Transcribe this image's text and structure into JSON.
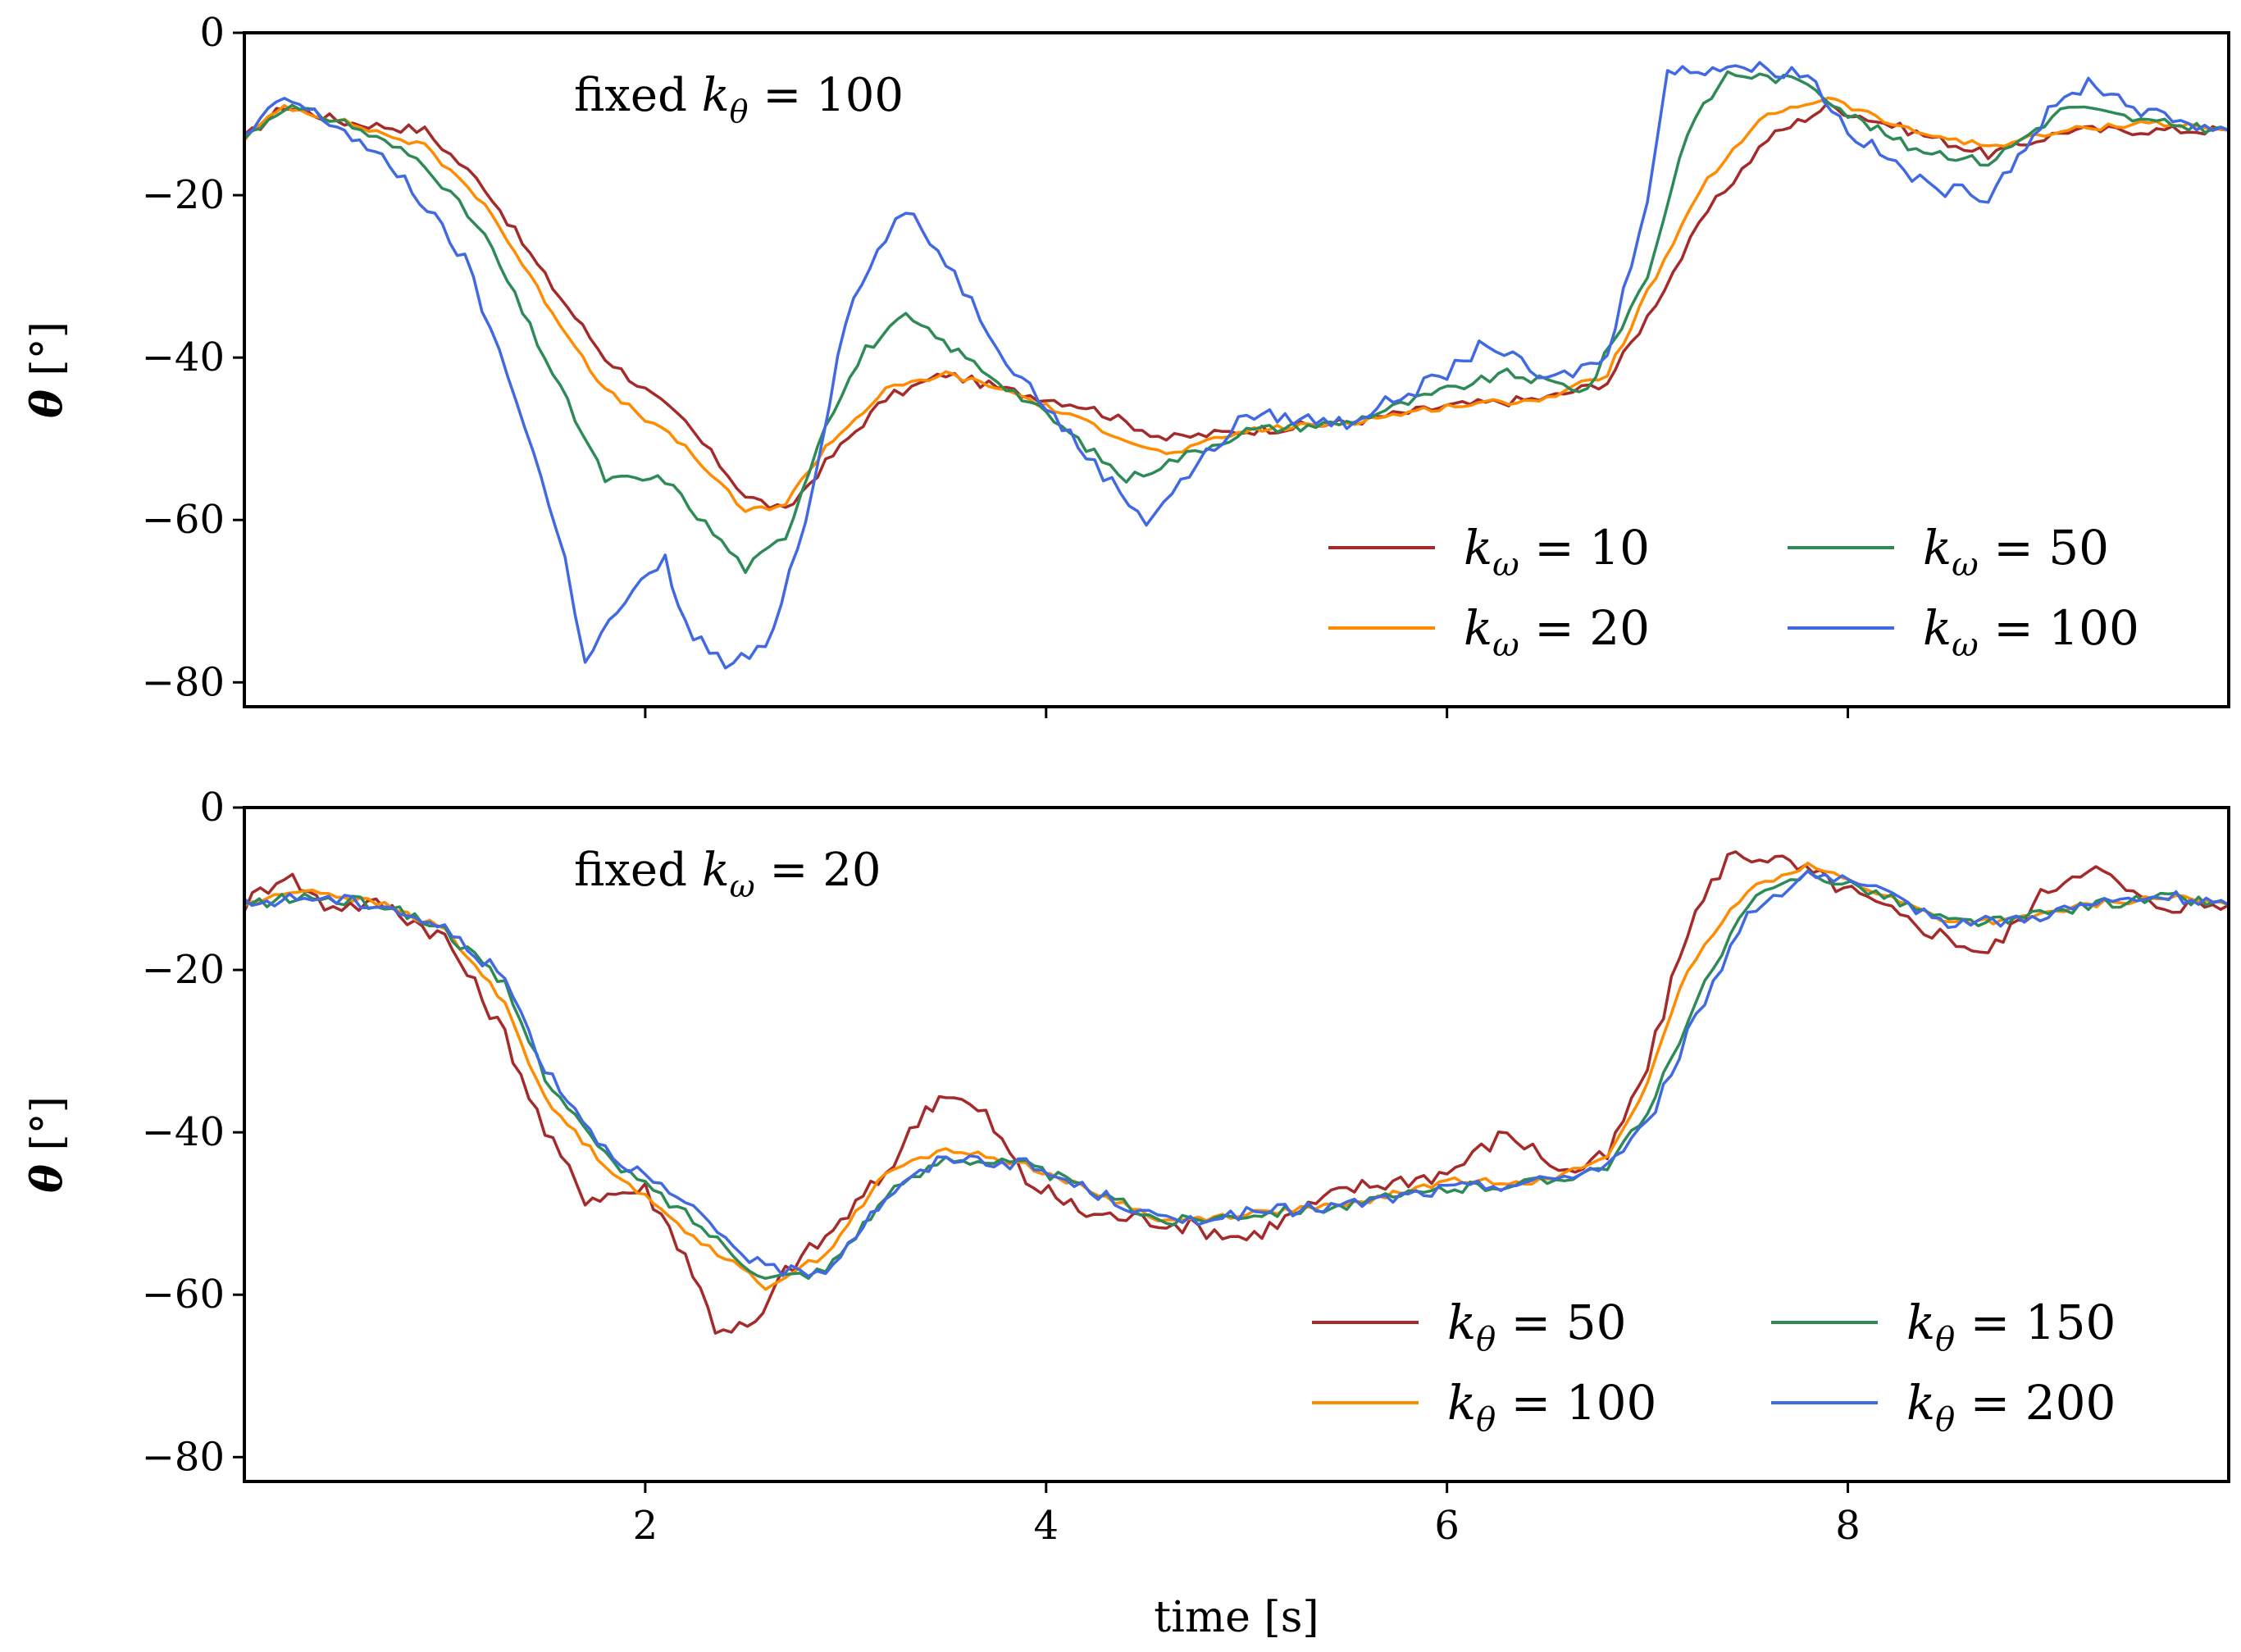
{
  "chart_data": [
    {
      "type": "line",
      "annotation": "fixed k_θ = 100",
      "ylabel": "θ [°]",
      "xlabel": "",
      "xlim": [
        0,
        9.9
      ],
      "ylim": [
        -83,
        0
      ],
      "xticks": [
        2,
        4,
        6,
        8
      ],
      "yticks": [
        0,
        -20,
        -40,
        -60,
        -80
      ],
      "legend": "lower-right, 2 columns",
      "series": [
        {
          "name": "k_ω = 10",
          "color": "#a52a2a",
          "points": [
            [
              0,
              -13
            ],
            [
              0.2,
              -9
            ],
            [
              0.5,
              -11
            ],
            [
              0.9,
              -12
            ],
            [
              1.2,
              -19
            ],
            [
              1.5,
              -30
            ],
            [
              1.8,
              -40
            ],
            [
              2.2,
              -48
            ],
            [
              2.5,
              -57
            ],
            [
              2.7,
              -59
            ],
            [
              2.9,
              -53
            ],
            [
              3.2,
              -45
            ],
            [
              3.5,
              -42
            ],
            [
              3.8,
              -44
            ],
            [
              4.2,
              -46
            ],
            [
              4.6,
              -50
            ],
            [
              5.0,
              -49
            ],
            [
              5.5,
              -48
            ],
            [
              6.0,
              -46
            ],
            [
              6.5,
              -45
            ],
            [
              6.8,
              -43
            ],
            [
              7.0,
              -35
            ],
            [
              7.3,
              -22
            ],
            [
              7.6,
              -13
            ],
            [
              7.9,
              -9
            ],
            [
              8.3,
              -12
            ],
            [
              8.7,
              -15
            ],
            [
              9.1,
              -12
            ],
            [
              9.5,
              -12
            ],
            [
              9.9,
              -12
            ]
          ]
        },
        {
          "name": "k_ω = 20",
          "color": "#ff8c00",
          "points": [
            [
              0,
              -13
            ],
            [
              0.2,
              -9
            ],
            [
              0.5,
              -11
            ],
            [
              0.9,
              -14
            ],
            [
              1.2,
              -21
            ],
            [
              1.5,
              -33
            ],
            [
              1.8,
              -44
            ],
            [
              2.2,
              -51
            ],
            [
              2.5,
              -59
            ],
            [
              2.7,
              -58
            ],
            [
              2.9,
              -51
            ],
            [
              3.2,
              -44
            ],
            [
              3.5,
              -42
            ],
            [
              3.8,
              -44
            ],
            [
              4.2,
              -48
            ],
            [
              4.6,
              -52
            ],
            [
              5.0,
              -49
            ],
            [
              5.5,
              -48
            ],
            [
              6.0,
              -46
            ],
            [
              6.5,
              -45
            ],
            [
              6.8,
              -42
            ],
            [
              7.0,
              -32
            ],
            [
              7.3,
              -18
            ],
            [
              7.6,
              -10
            ],
            [
              7.9,
              -8
            ],
            [
              8.3,
              -12
            ],
            [
              8.7,
              -14
            ],
            [
              9.1,
              -12
            ],
            [
              9.5,
              -11
            ],
            [
              9.9,
              -12
            ]
          ]
        },
        {
          "name": "k_ω = 50",
          "color": "#2e8b57",
          "points": [
            [
              0,
              -13
            ],
            [
              0.2,
              -9
            ],
            [
              0.5,
              -11
            ],
            [
              0.9,
              -16
            ],
            [
              1.2,
              -25
            ],
            [
              1.5,
              -40
            ],
            [
              1.8,
              -55
            ],
            [
              2.1,
              -55
            ],
            [
              2.5,
              -66
            ],
            [
              2.7,
              -62
            ],
            [
              2.9,
              -48
            ],
            [
              3.1,
              -39
            ],
            [
              3.3,
              -35
            ],
            [
              3.6,
              -40
            ],
            [
              4.0,
              -47
            ],
            [
              4.4,
              -55
            ],
            [
              4.7,
              -52
            ],
            [
              5.0,
              -49
            ],
            [
              5.5,
              -48
            ],
            [
              6.0,
              -44
            ],
            [
              6.3,
              -42
            ],
            [
              6.7,
              -44
            ],
            [
              7.0,
              -30
            ],
            [
              7.2,
              -12
            ],
            [
              7.4,
              -5
            ],
            [
              7.8,
              -6
            ],
            [
              8.0,
              -10
            ],
            [
              8.3,
              -14
            ],
            [
              8.7,
              -16
            ],
            [
              9.1,
              -9
            ],
            [
              9.5,
              -11
            ],
            [
              9.9,
              -12
            ]
          ]
        },
        {
          "name": "k_ω = 100",
          "color": "#4169e1",
          "points": [
            [
              0,
              -13
            ],
            [
              0.2,
              -8
            ],
            [
              0.5,
              -12
            ],
            [
              0.8,
              -18
            ],
            [
              1.1,
              -28
            ],
            [
              1.4,
              -48
            ],
            [
              1.6,
              -65
            ],
            [
              1.7,
              -77
            ],
            [
              1.9,
              -70
            ],
            [
              2.1,
              -65
            ],
            [
              2.2,
              -73
            ],
            [
              2.4,
              -78
            ],
            [
              2.6,
              -76
            ],
            [
              2.8,
              -60
            ],
            [
              3.0,
              -35
            ],
            [
              3.2,
              -25
            ],
            [
              3.3,
              -22
            ],
            [
              3.5,
              -28
            ],
            [
              3.8,
              -40
            ],
            [
              4.2,
              -52
            ],
            [
              4.5,
              -60
            ],
            [
              4.8,
              -52
            ],
            [
              5.0,
              -47
            ],
            [
              5.5,
              -48
            ],
            [
              6.0,
              -42
            ],
            [
              6.2,
              -38
            ],
            [
              6.5,
              -43
            ],
            [
              6.8,
              -40
            ],
            [
              7.0,
              -20
            ],
            [
              7.1,
              -5
            ],
            [
              7.4,
              -4
            ],
            [
              7.8,
              -5
            ],
            [
              8.0,
              -12
            ],
            [
              8.4,
              -19
            ],
            [
              8.7,
              -20
            ],
            [
              9.0,
              -10
            ],
            [
              9.2,
              -6
            ],
            [
              9.5,
              -10
            ],
            [
              9.9,
              -12
            ]
          ]
        }
      ]
    },
    {
      "type": "line",
      "annotation": "fixed k_ω = 20",
      "ylabel": "θ [°]",
      "xlabel": "time [s]",
      "xlim": [
        0,
        9.9
      ],
      "ylim": [
        -83,
        0
      ],
      "xticks": [
        2,
        4,
        6,
        8
      ],
      "yticks": [
        0,
        -20,
        -40,
        -60,
        -80
      ],
      "legend": "lower-right, 2 columns",
      "series": [
        {
          "name": "k_θ = 50",
          "color": "#a52a2a",
          "points": [
            [
              0,
              -12
            ],
            [
              0.2,
              -8
            ],
            [
              0.4,
              -12
            ],
            [
              0.7,
              -12
            ],
            [
              1.0,
              -16
            ],
            [
              1.3,
              -28
            ],
            [
              1.5,
              -40
            ],
            [
              1.7,
              -48
            ],
            [
              2.0,
              -47
            ],
            [
              2.2,
              -55
            ],
            [
              2.35,
              -64
            ],
            [
              2.55,
              -64
            ],
            [
              2.7,
              -57
            ],
            [
              2.9,
              -53
            ],
            [
              3.2,
              -45
            ],
            [
              3.4,
              -37
            ],
            [
              3.5,
              -35
            ],
            [
              3.7,
              -38
            ],
            [
              3.9,
              -46
            ],
            [
              4.2,
              -50
            ],
            [
              4.6,
              -51
            ],
            [
              5.0,
              -53
            ],
            [
              5.5,
              -47
            ],
            [
              6.0,
              -45
            ],
            [
              6.3,
              -40
            ],
            [
              6.6,
              -45
            ],
            [
              6.8,
              -43
            ],
            [
              7.0,
              -32
            ],
            [
              7.2,
              -15
            ],
            [
              7.4,
              -6
            ],
            [
              7.6,
              -6
            ],
            [
              7.9,
              -9
            ],
            [
              8.3,
              -14
            ],
            [
              8.7,
              -18
            ],
            [
              9.0,
              -10
            ],
            [
              9.2,
              -7
            ],
            [
              9.5,
              -12
            ],
            [
              9.9,
              -12
            ]
          ]
        },
        {
          "name": "k_θ = 100",
          "color": "#ff8c00",
          "points": [
            [
              0,
              -12
            ],
            [
              0.3,
              -10
            ],
            [
              0.7,
              -12
            ],
            [
              1.0,
              -15
            ],
            [
              1.3,
              -24
            ],
            [
              1.5,
              -36
            ],
            [
              1.8,
              -44
            ],
            [
              2.2,
              -52
            ],
            [
              2.6,
              -59
            ],
            [
              2.9,
              -55
            ],
            [
              3.2,
              -45
            ],
            [
              3.5,
              -42
            ],
            [
              3.9,
              -44
            ],
            [
              4.3,
              -48
            ],
            [
              4.6,
              -51
            ],
            [
              5.0,
              -50
            ],
            [
              5.5,
              -49
            ],
            [
              6.0,
              -46
            ],
            [
              6.5,
              -46
            ],
            [
              6.8,
              -43
            ],
            [
              7.0,
              -34
            ],
            [
              7.2,
              -20
            ],
            [
              7.5,
              -10
            ],
            [
              7.8,
              -7
            ],
            [
              8.1,
              -10
            ],
            [
              8.5,
              -14
            ],
            [
              8.8,
              -14
            ],
            [
              9.2,
              -12
            ],
            [
              9.6,
              -11
            ],
            [
              9.9,
              -12
            ]
          ]
        },
        {
          "name": "k_θ = 150",
          "color": "#2e8b57",
          "points": [
            [
              0,
              -12
            ],
            [
              0.3,
              -11
            ],
            [
              0.7,
              -12
            ],
            [
              1.0,
              -15
            ],
            [
              1.3,
              -22
            ],
            [
              1.5,
              -33
            ],
            [
              1.8,
              -43
            ],
            [
              2.2,
              -50
            ],
            [
              2.6,
              -58
            ],
            [
              2.9,
              -57
            ],
            [
              3.2,
              -48
            ],
            [
              3.5,
              -43
            ],
            [
              3.9,
              -44
            ],
            [
              4.3,
              -48
            ],
            [
              4.6,
              -51
            ],
            [
              5.0,
              -50
            ],
            [
              5.5,
              -49
            ],
            [
              6.0,
              -47
            ],
            [
              6.5,
              -46
            ],
            [
              6.8,
              -44
            ],
            [
              7.0,
              -38
            ],
            [
              7.2,
              -26
            ],
            [
              7.5,
              -12
            ],
            [
              7.8,
              -8
            ],
            [
              8.1,
              -10
            ],
            [
              8.5,
              -14
            ],
            [
              8.8,
              -14
            ],
            [
              9.2,
              -12
            ],
            [
              9.6,
              -11
            ],
            [
              9.9,
              -12
            ]
          ]
        },
        {
          "name": "k_θ = 200",
          "color": "#4169e1",
          "points": [
            [
              0,
              -12
            ],
            [
              0.3,
              -11
            ],
            [
              0.7,
              -12
            ],
            [
              1.0,
              -15
            ],
            [
              1.3,
              -21
            ],
            [
              1.5,
              -32
            ],
            [
              1.8,
              -42
            ],
            [
              2.2,
              -49
            ],
            [
              2.6,
              -57
            ],
            [
              2.9,
              -57
            ],
            [
              3.2,
              -48
            ],
            [
              3.5,
              -43
            ],
            [
              3.9,
              -44
            ],
            [
              4.3,
              -48
            ],
            [
              4.6,
              -51
            ],
            [
              5.0,
              -50
            ],
            [
              5.5,
              -49
            ],
            [
              6.0,
              -47
            ],
            [
              6.5,
              -46
            ],
            [
              6.8,
              -44
            ],
            [
              7.0,
              -39
            ],
            [
              7.2,
              -28
            ],
            [
              7.5,
              -13
            ],
            [
              7.8,
              -8
            ],
            [
              8.1,
              -10
            ],
            [
              8.5,
              -14
            ],
            [
              8.8,
              -14
            ],
            [
              9.2,
              -12
            ],
            [
              9.6,
              -11
            ],
            [
              9.9,
              -12
            ]
          ]
        }
      ]
    }
  ]
}
